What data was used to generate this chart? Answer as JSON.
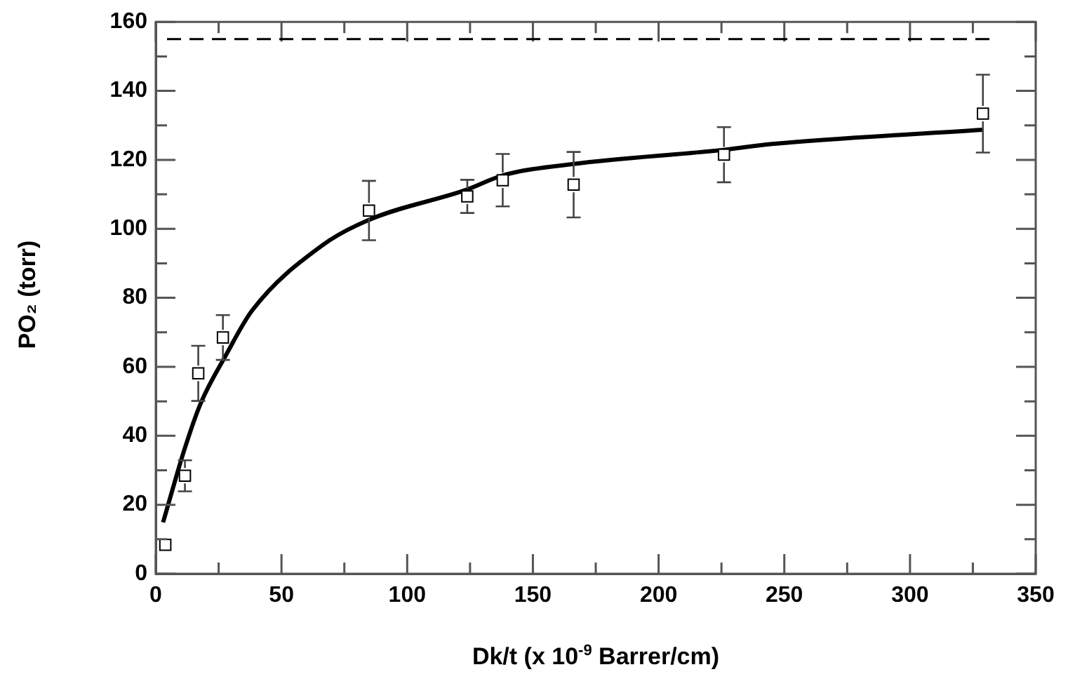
{
  "chart_data": {
    "type": "scatter",
    "xlabel": "Dk/t (x 10$^{-9}$ Barrer/cm)",
    "ylabel": "PO₂ (torr)",
    "xlim": [
      0,
      350
    ],
    "xticks": [
      0,
      {
        "value": 25,
        "label": null
      },
      50,
      {
        "value": 75,
        "label": null
      },
      100,
      {
        "value": 125,
        "label": null
      },
      150,
      {
        "value": 175,
        "label": null
      },
      200,
      {
        "value": 225,
        "label": null
      },
      250,
      {
        "value": 275,
        "label": null
      },
      300,
      {
        "value": 325,
        "label": null
      },
      350
    ],
    "ylim": [
      0,
      160
    ],
    "yticks": [
      0,
      {
        "value": 10,
        "label": null
      },
      20,
      {
        "value": 30,
        "label": null
      },
      40,
      {
        "value": 50,
        "label": null
      },
      60,
      {
        "value": 70,
        "label": null
      },
      80,
      {
        "value": 90,
        "label": null
      },
      100,
      {
        "value": 110,
        "label": null
      },
      120,
      {
        "value": 130,
        "label": null
      },
      140,
      {
        "value": 150,
        "label": null
      },
      160
    ],
    "grid": false,
    "legend": false,
    "series": [
      {
        "color": "#000000",
        "marker": "square",
        "x": [
          3.8,
          11.6,
          16.9,
          26.7,
          84.8,
          123.9,
          138,
          166.2,
          226,
          329
        ],
        "values": [
          8.4,
          28.4,
          58.1,
          68.5,
          105.3,
          109.4,
          114.1,
          112.8,
          121.5,
          133.4
        ],
        "errors": [
          null,
          4.5,
          8,
          6.5,
          8.6,
          4.8,
          7.6,
          9.5,
          8,
          11.3
        ]
      },
      {
        "type": "line",
        "color": "#000000",
        "marker": "none",
        "x": [
          2.9,
          11.3,
          17.8,
          28,
          38.3,
          66.2,
          84.8,
          123.9,
          138,
          166.2,
          226,
          245,
          329
        ],
        "values": [
          14.9,
          35.8,
          49.3,
          63.5,
          76.3,
          95.2,
          102.6,
          111.4,
          115.5,
          118.8,
          122.9,
          124.6,
          128.7
        ]
      }
    ],
    "ref_lines": [
      {
        "axis": "y",
        "value": 155,
        "color": "#000000",
        "line_style": "dashed"
      }
    ]
  }
}
